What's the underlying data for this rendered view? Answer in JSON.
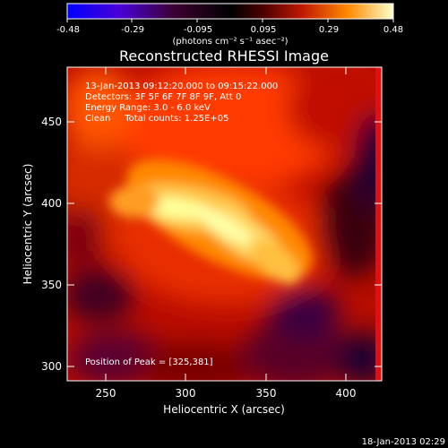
{
  "colorbar": {
    "ticks": [
      "-0.48",
      "-0.29",
      "-0.095",
      "0.095",
      "0.29",
      "0.48"
    ],
    "units": "(photons cm⁻² s⁻¹ asec⁻²)"
  },
  "title": "Reconstructed RHESSI Image",
  "info": {
    "line1": "13-Jan-2013 09:12:20.000 to 09:15:22.000",
    "line2": "Detectors: 3F 5F 6F 7F 8F 9F, Att 0",
    "line3": "Energy Range: 3.0 - 6.0 keV",
    "line4": "Clean     Total counts: 1.25E+05"
  },
  "peak_label": "Position of Peak = [325,381]",
  "axes": {
    "xlabel": "Heliocentric X (arcsec)",
    "ylabel": "Heliocentric Y (arcsec)",
    "xticks": [
      "250",
      "300",
      "350",
      "400"
    ],
    "yticks": [
      "300",
      "350",
      "400",
      "450"
    ]
  },
  "footer_timestamp": "18-Jan-2013 02:29",
  "colors": {
    "background": "#000000",
    "colormap": [
      "#0000ff",
      "#6600cc",
      "#330044",
      "#000000",
      "#550000",
      "#cc2200",
      "#ff8800",
      "#ffff99"
    ]
  }
}
